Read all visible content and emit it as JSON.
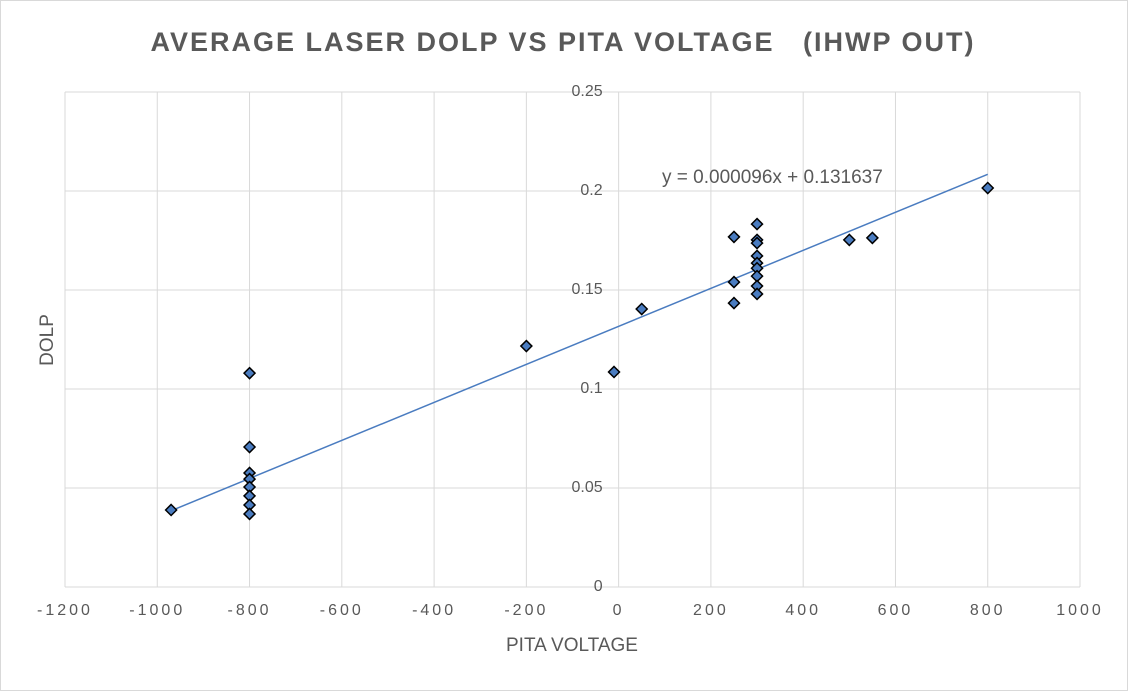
{
  "chart_data": {
    "type": "scatter",
    "title": "AVERAGE LASER DOLP VS PITA VOLTAGE   (IHWP OUT)",
    "x_label": "PITA VOLTAGE",
    "y_label": "DOLP",
    "series": [
      {
        "name": "DOLP",
        "color": "#4a7cc0",
        "x": [
          -970,
          -800,
          -800,
          -800,
          -800,
          -800,
          -800,
          -800,
          -800,
          -200,
          -10,
          50,
          250,
          250,
          250,
          300,
          300,
          300,
          300,
          300,
          300,
          300,
          300,
          300,
          500,
          550,
          800
        ],
        "values": [
          0.0389,
          0.108,
          0.0707,
          0.0576,
          0.0545,
          0.0505,
          0.046,
          0.0414,
          0.0369,
          0.1217,
          0.1086,
          0.1404,
          0.1768,
          0.154,
          0.1434,
          0.1833,
          0.1753,
          0.1737,
          0.1672,
          0.1636,
          0.161,
          0.157,
          0.152,
          0.148,
          0.1753,
          0.1763,
          0.2015
        ]
      }
    ],
    "trendline": {
      "slope": 9.6e-05,
      "intercept": 0.131637,
      "color": "#4a7cc0",
      "label": "y = 0.000096x + 0.131637"
    },
    "xlim": [
      -1200,
      1000
    ],
    "xticks": [
      -1200,
      -1000,
      -800,
      -600,
      -400,
      -200,
      0,
      200,
      400,
      600,
      800,
      1000
    ],
    "ylim": [
      0,
      0.25
    ],
    "yticks": [
      0,
      0.05,
      0.1,
      0.15,
      0.2,
      0.25
    ],
    "grid": true
  }
}
